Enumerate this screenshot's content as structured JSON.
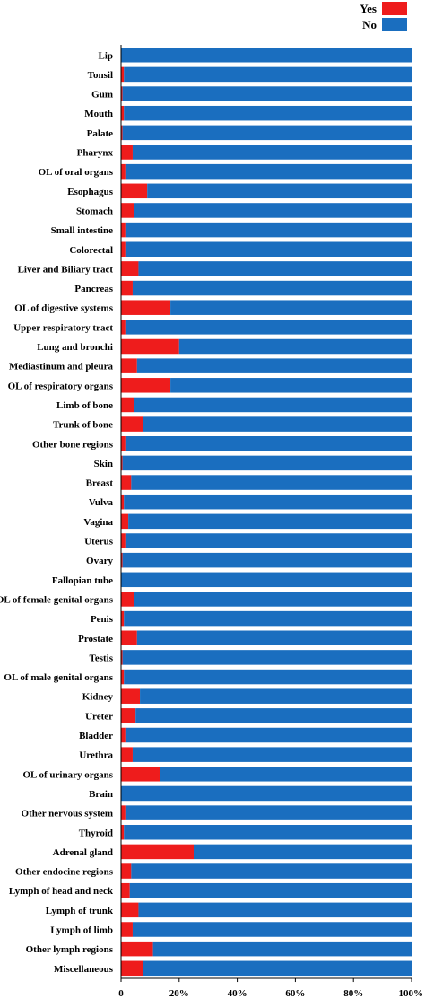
{
  "chart_data": {
    "type": "bar",
    "orientation": "horizontal",
    "stacked": "percent",
    "title": "",
    "xlabel": "",
    "ylabel": "",
    "xlim": [
      0,
      100
    ],
    "x_ticks": [
      "0",
      "20%",
      "40%",
      "60%",
      "80%",
      "100%"
    ],
    "grid": false,
    "legend_position": "top-right",
    "colors": {
      "Yes": "#ee1c1c",
      "No": "#1a6ebf"
    },
    "categories": [
      "Lip",
      "Tonsil",
      "Gum",
      "Mouth",
      "Palate",
      "Pharynx",
      "OL of oral organs",
      "Esophagus",
      "Stomach",
      "Small intestine",
      "Colorectal",
      "Liver and Biliary tract",
      "Pancreas",
      "OL of digestive systems",
      "Upper respiratory tract",
      "Lung and bronchi",
      "Mediastinum and pleura",
      "OL of respiratory organs",
      "Limb of bone",
      "Trunk of bone",
      "Other bone regions",
      "Skin",
      "Breast",
      "Vulva",
      "Vagina",
      "Uterus",
      "Ovary",
      "Fallopian tube",
      "OL of female genital organs",
      "Penis",
      "Prostate",
      "Testis",
      "OL of male genital organs",
      "Kidney",
      "Ureter",
      "Bladder",
      "Urethra",
      "OL of urinary organs",
      "Brain",
      "Other nervous system",
      "Thyroid",
      "Adrenal gland",
      "Other endocine regions",
      "Lymph of head and neck",
      "Lymph of trunk",
      "Lymph of limb",
      "Other lymph regions",
      "Miscellaneous"
    ],
    "series": [
      {
        "name": "Yes",
        "values": [
          0,
          1,
          0.5,
          1,
          0.5,
          4,
          1.5,
          9,
          4.5,
          1.5,
          1.5,
          6,
          4,
          17,
          1.5,
          20,
          5.5,
          17,
          4.5,
          7.5,
          1.5,
          0.5,
          3.5,
          1,
          2.5,
          1.5,
          0.5,
          0,
          4.5,
          1,
          5.5,
          0.5,
          1,
          6.5,
          5,
          1.5,
          4,
          13.5,
          0,
          1.5,
          1,
          25,
          3.5,
          3,
          6,
          4,
          11,
          7.5
        ]
      },
      {
        "name": "No",
        "values": [
          100,
          99,
          99.5,
          99,
          99.5,
          96,
          98.5,
          91,
          95.5,
          98.5,
          98.5,
          94,
          96,
          83,
          98.5,
          80,
          94.5,
          83,
          95.5,
          92.5,
          98.5,
          99.5,
          96.5,
          99,
          97.5,
          98.5,
          99.5,
          100,
          95.5,
          99,
          94.5,
          99.5,
          99,
          93.5,
          95,
          98.5,
          96,
          86.5,
          100,
          98.5,
          99,
          75,
          96.5,
          97,
          94,
          96,
          89,
          92.5
        ]
      }
    ]
  }
}
